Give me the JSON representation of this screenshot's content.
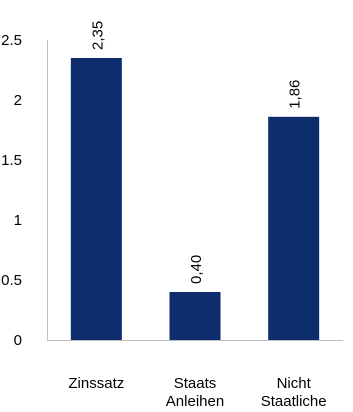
{
  "chart_data": {
    "type": "bar",
    "categories": [
      [
        "Zinssatz"
      ],
      [
        "Staats",
        "Anleihen"
      ],
      [
        "Nicht",
        "Staatliche"
      ]
    ],
    "values": [
      2.35,
      0.4,
      1.86
    ],
    "data_labels": [
      "2,35",
      "0,40",
      "1,86"
    ],
    "yticks": [
      "0",
      "0.5",
      "1",
      "1.5",
      "2",
      "2.5"
    ],
    "ytick_values": [
      0,
      0.5,
      1,
      1.5,
      2,
      2.5
    ],
    "ylim": [
      0,
      2.5
    ],
    "title": "",
    "xlabel": "",
    "ylabel": "",
    "grid": false,
    "legend": "none",
    "bar_color": "#0d2d6c",
    "axis_color": "#bfbfbf"
  }
}
